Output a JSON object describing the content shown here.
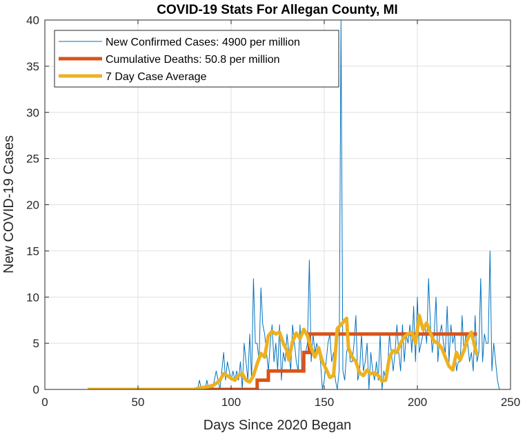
{
  "chart_data": {
    "type": "line",
    "title": "COVID-19 Stats For Allegan County, MI",
    "xlabel": "Days Since 2020 Began",
    "ylabel": "New COVID-19 Cases",
    "xlim": [
      0,
      250
    ],
    "ylim": [
      0,
      40
    ],
    "xticks": [
      0,
      50,
      100,
      150,
      200,
      250
    ],
    "yticks": [
      0,
      5,
      10,
      15,
      20,
      25,
      30,
      35,
      40
    ],
    "grid": true,
    "legend_position": "top-left",
    "series": [
      {
        "name": "New Confirmed Cases: 4900 per million",
        "color": "#0072bd",
        "x_start": 23,
        "values": [
          0,
          0,
          0,
          0,
          0,
          0,
          0,
          0,
          0,
          0,
          0,
          0,
          0,
          0,
          0,
          0,
          0,
          0,
          0,
          0,
          0,
          0,
          0,
          0,
          0,
          0,
          0,
          0,
          0,
          0,
          0,
          0,
          0,
          0,
          0,
          0,
          0,
          0,
          0,
          0,
          0,
          0,
          0,
          0,
          0,
          0,
          0,
          0,
          0,
          0,
          0,
          0,
          0,
          0,
          0,
          0,
          0,
          0,
          0,
          0,
          1,
          0,
          0,
          0,
          1,
          0,
          0,
          0,
          1,
          2,
          1,
          0,
          2,
          4,
          1,
          3,
          2,
          1,
          2,
          1,
          2,
          1,
          3,
          0,
          5,
          3,
          1,
          6,
          1,
          12,
          5,
          5,
          3,
          11,
          7,
          6,
          4,
          2,
          5,
          7,
          3,
          5,
          2,
          7,
          1,
          4,
          3,
          6,
          4,
          2,
          7,
          5,
          3,
          2,
          7,
          2,
          4,
          4,
          5,
          14,
          3,
          6,
          4,
          5,
          4,
          3,
          0,
          1,
          3,
          5,
          6,
          3,
          4,
          1,
          0,
          2,
          40,
          2,
          1,
          4,
          5,
          3,
          3,
          5,
          8,
          1,
          2,
          6,
          2,
          3,
          5,
          0,
          4,
          2,
          1,
          3,
          1,
          6,
          0,
          2,
          1,
          2,
          6,
          4,
          2,
          4,
          7,
          4,
          2,
          7,
          3,
          6,
          5,
          7,
          4,
          9,
          3,
          10,
          4,
          5,
          6,
          7,
          5,
          12,
          7,
          4,
          6,
          10,
          3,
          6,
          7,
          5,
          4,
          9,
          3,
          7,
          5,
          6,
          2,
          3,
          3,
          8,
          4,
          6,
          5,
          3,
          4,
          2,
          8,
          3,
          4,
          12,
          3,
          6,
          5,
          5,
          15,
          2,
          5,
          3,
          1,
          0
        ]
      },
      {
        "name": "Cumulative Deaths: 50.8 per million",
        "color": "#d95319",
        "steps": [
          [
            23,
            0
          ],
          [
            114,
            0
          ],
          [
            114,
            1
          ],
          [
            120,
            1
          ],
          [
            120,
            2
          ],
          [
            139,
            2
          ],
          [
            139,
            4
          ],
          [
            142,
            4
          ],
          [
            142,
            6
          ],
          [
            232,
            6
          ]
        ]
      },
      {
        "name": "7 Day Case Average",
        "color": "#edb120",
        "points": [
          [
            23,
            0
          ],
          [
            80,
            0
          ],
          [
            84,
            0.2
          ],
          [
            88,
            0.3
          ],
          [
            91,
            0.5
          ],
          [
            94,
            1.0
          ],
          [
            96,
            1.7
          ],
          [
            98,
            1.5
          ],
          [
            100,
            1.2
          ],
          [
            102,
            1.0
          ],
          [
            104,
            1.5
          ],
          [
            106,
            1.7
          ],
          [
            108,
            1.0
          ],
          [
            110,
            0.8
          ],
          [
            112,
            1.5
          ],
          [
            114,
            2.8
          ],
          [
            116,
            3.9
          ],
          [
            118,
            3.5
          ],
          [
            120,
            5.8
          ],
          [
            122,
            6.3
          ],
          [
            124,
            6.0
          ],
          [
            126,
            6.2
          ],
          [
            128,
            5.0
          ],
          [
            130,
            4.2
          ],
          [
            131,
            3.2
          ],
          [
            133,
            5.2
          ],
          [
            135,
            6.1
          ],
          [
            137,
            5.5
          ],
          [
            139,
            6.5
          ],
          [
            141,
            5.8
          ],
          [
            143,
            4.5
          ],
          [
            145,
            3.5
          ],
          [
            147,
            4.5
          ],
          [
            149,
            3.0
          ],
          [
            151,
            2.2
          ],
          [
            153,
            1.3
          ],
          [
            155,
            1.5
          ],
          [
            157,
            6.6
          ],
          [
            159,
            7.0
          ],
          [
            161,
            7.5
          ],
          [
            162,
            7.7
          ],
          [
            163,
            4.5
          ],
          [
            165,
            3.5
          ],
          [
            167,
            3.0
          ],
          [
            169,
            1.8
          ],
          [
            171,
            1.5
          ],
          [
            173,
            2.1
          ],
          [
            175,
            1.7
          ],
          [
            177,
            1.8
          ],
          [
            179,
            1.5
          ],
          [
            181,
            0.9
          ],
          [
            183,
            1.0
          ],
          [
            185,
            3.5
          ],
          [
            187,
            4.2
          ],
          [
            189,
            4.0
          ],
          [
            191,
            5.0
          ],
          [
            193,
            5.7
          ],
          [
            195,
            6.0
          ],
          [
            197,
            6.2
          ],
          [
            199,
            5.0
          ],
          [
            201,
            8.0
          ],
          [
            203,
            6.5
          ],
          [
            205,
            7.2
          ],
          [
            207,
            6.1
          ],
          [
            209,
            5.2
          ],
          [
            211,
            5.0
          ],
          [
            213,
            4.5
          ],
          [
            215,
            3.5
          ],
          [
            217,
            2.5
          ],
          [
            219,
            2.1
          ],
          [
            221,
            4.0
          ],
          [
            223,
            3.2
          ],
          [
            225,
            4.2
          ],
          [
            227,
            5.5
          ],
          [
            229,
            6.2
          ],
          [
            231,
            4.5
          ],
          [
            232,
            3.7
          ]
        ]
      }
    ]
  }
}
